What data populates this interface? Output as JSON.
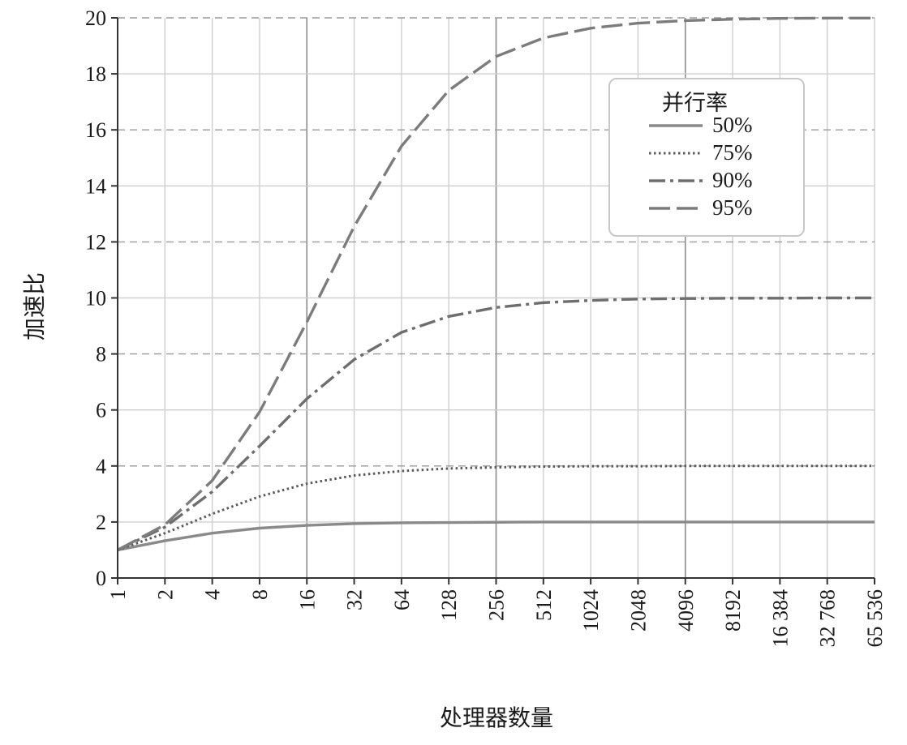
{
  "chart_data": {
    "type": "line",
    "xlabel": "处理器数量",
    "ylabel": "加速比",
    "x_scale": "log2",
    "x": [
      1,
      2,
      4,
      8,
      16,
      32,
      64,
      128,
      256,
      512,
      1024,
      2048,
      4096,
      8192,
      16384,
      32768,
      65536
    ],
    "x_tick_labels": [
      "1",
      "2",
      "4",
      "8",
      "16",
      "32",
      "64",
      "128",
      "256",
      "512",
      "1024",
      "2048",
      "4096",
      "8192",
      "16 384",
      "32 768",
      "65 536"
    ],
    "ylim": [
      0,
      20
    ],
    "y_ticks": [
      0,
      2,
      4,
      6,
      8,
      10,
      12,
      14,
      16,
      18,
      20
    ],
    "grid": true,
    "legend": {
      "title": "并行率",
      "position": "top-right"
    },
    "series": [
      {
        "name": "50%",
        "style": "solid",
        "color": "#8a8a8a",
        "values": [
          1.0,
          1.33,
          1.6,
          1.78,
          1.88,
          1.94,
          1.97,
          1.98,
          1.99,
          2.0,
          2.0,
          2.0,
          2.0,
          2.0,
          2.0,
          2.0,
          2.0
        ]
      },
      {
        "name": "75%",
        "style": "dotted",
        "color": "#5a5a5a",
        "values": [
          1.0,
          1.6,
          2.29,
          2.91,
          3.37,
          3.66,
          3.82,
          3.91,
          3.95,
          3.98,
          3.99,
          3.99,
          4.0,
          4.0,
          4.0,
          4.0,
          4.0
        ]
      },
      {
        "name": "90%",
        "style": "dashdot",
        "color": "#6e6e6e",
        "values": [
          1.0,
          1.82,
          3.08,
          4.71,
          6.4,
          7.8,
          8.77,
          9.34,
          9.66,
          9.83,
          9.91,
          9.96,
          9.98,
          9.99,
          9.99,
          10.0,
          10.0
        ]
      },
      {
        "name": "95%",
        "style": "dashed",
        "color": "#7c7c7c",
        "values": [
          1.0,
          1.9,
          3.48,
          5.93,
          9.14,
          12.55,
          15.42,
          17.41,
          18.62,
          19.28,
          19.63,
          19.81,
          19.9,
          19.95,
          19.98,
          19.99,
          19.99
        ]
      }
    ]
  }
}
